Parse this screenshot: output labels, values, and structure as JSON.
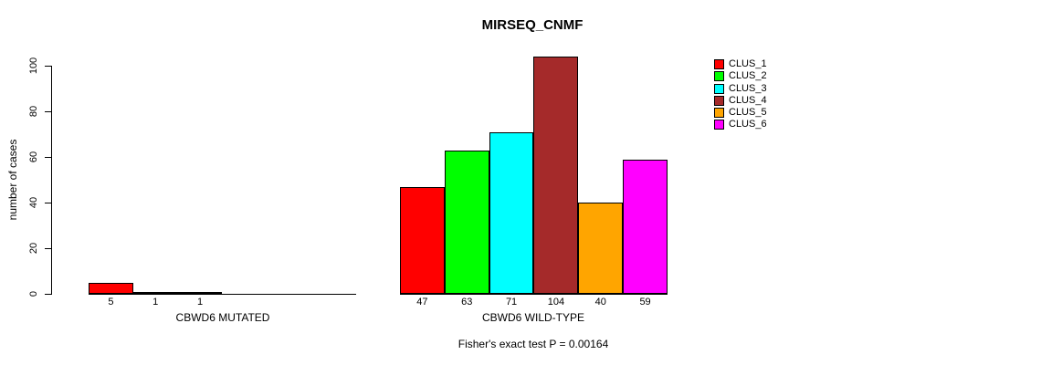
{
  "chart_data": {
    "type": "bar",
    "title": "MIRSEQ_CNMF",
    "ylabel": "number of cases",
    "xlabel": "",
    "ylim": [
      0,
      100
    ],
    "yticks": [
      0,
      20,
      40,
      60,
      80,
      100
    ],
    "grid": false,
    "legend_position": "right",
    "legend_entries": [
      "CLUS_1",
      "CLUS_2",
      "CLUS_3",
      "CLUS_4",
      "CLUS_5",
      "CLUS_6"
    ],
    "colors": [
      "#ff0000",
      "#00ff00",
      "#00ffff",
      "#a52a2a",
      "#ffa500",
      "#ff00ff"
    ],
    "groups": [
      {
        "label": "CBWD6 MUTATED",
        "values": [
          5,
          1,
          1,
          0,
          0,
          0
        ],
        "bar_labels": [
          "5",
          "1",
          "1",
          "",
          "",
          ""
        ]
      },
      {
        "label": "CBWD6 WILD-TYPE",
        "values": [
          47,
          63,
          71,
          104,
          40,
          59
        ],
        "bar_labels": [
          "47",
          "63",
          "71",
          "104",
          "40",
          "59"
        ]
      }
    ],
    "annotation": "Fisher's exact test P = 0.00164"
  }
}
